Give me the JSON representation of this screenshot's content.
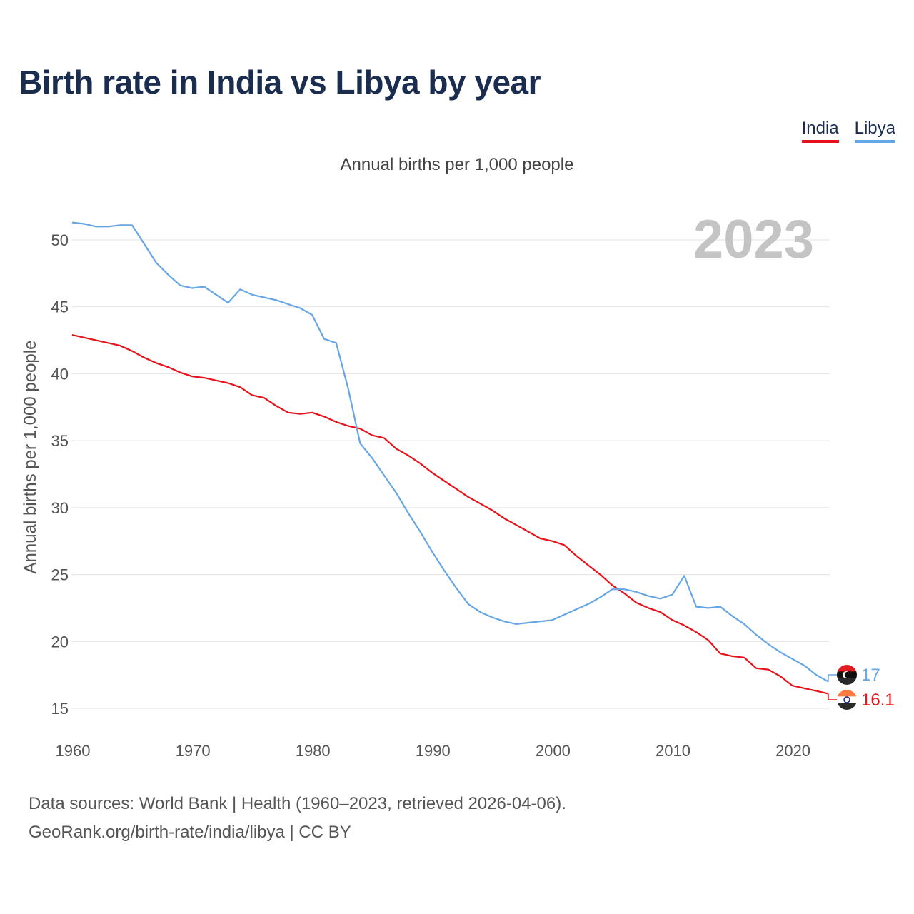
{
  "title": "Birth rate in India vs Libya by year",
  "legend": [
    {
      "name": "India",
      "color": "#e8131a"
    },
    {
      "name": "Libya",
      "color": "#67a6e4"
    }
  ],
  "subtitle": "Annual births per 1,000 people",
  "footer": {
    "line1": "Data sources: World Bank | Health (1960–2023, retrieved 2026-04-06).",
    "line2": "GeoRank.org/birth-rate/india/libya | CC BY"
  },
  "chart_data": {
    "type": "line",
    "title": "Birth rate in India vs Libya by year",
    "subtitle": "Annual births per 1,000 people",
    "xlabel": "",
    "ylabel": "Annual births per 1,000 people",
    "year_label": "2023",
    "xlim": [
      1960,
      2023
    ],
    "ylim": [
      14,
      53
    ],
    "xticks": [
      1960,
      1970,
      1980,
      1990,
      2000,
      2010,
      2020
    ],
    "yticks": [
      15,
      20,
      25,
      30,
      35,
      40,
      45,
      50
    ],
    "grid": true,
    "legend_position": "top-right",
    "x": [
      1960,
      1961,
      1962,
      1963,
      1964,
      1965,
      1966,
      1967,
      1968,
      1969,
      1970,
      1971,
      1972,
      1973,
      1974,
      1975,
      1976,
      1977,
      1978,
      1979,
      1980,
      1981,
      1982,
      1983,
      1984,
      1985,
      1986,
      1987,
      1988,
      1989,
      1990,
      1991,
      1992,
      1993,
      1994,
      1995,
      1996,
      1997,
      1998,
      1999,
      2000,
      2001,
      2002,
      2003,
      2004,
      2005,
      2006,
      2007,
      2008,
      2009,
      2010,
      2011,
      2012,
      2013,
      2014,
      2015,
      2016,
      2017,
      2018,
      2019,
      2020,
      2021,
      2022,
      2023
    ],
    "series": [
      {
        "name": "India",
        "color": "#e8131a",
        "end_label": "16.1",
        "values": [
          42.9,
          42.7,
          42.5,
          42.3,
          42.1,
          41.7,
          41.2,
          40.8,
          40.5,
          40.1,
          39.8,
          39.7,
          39.5,
          39.3,
          39.0,
          38.4,
          38.2,
          37.6,
          37.1,
          37.0,
          37.1,
          36.8,
          36.4,
          36.1,
          35.9,
          35.4,
          35.2,
          34.4,
          33.9,
          33.3,
          32.6,
          32.0,
          31.4,
          30.8,
          30.3,
          29.8,
          29.2,
          28.7,
          28.2,
          27.7,
          27.5,
          27.2,
          26.4,
          25.7,
          25.0,
          24.2,
          23.6,
          22.9,
          22.5,
          22.2,
          21.6,
          21.2,
          20.7,
          20.1,
          19.1,
          18.9,
          18.8,
          18.0,
          17.9,
          17.4,
          16.7,
          16.5,
          16.3,
          16.1
        ]
      },
      {
        "name": "Libya",
        "color": "#67a6e4",
        "end_label": "17",
        "values": [
          51.3,
          51.2,
          51.0,
          51.0,
          51.1,
          51.1,
          49.7,
          48.3,
          47.4,
          46.6,
          46.4,
          46.5,
          45.9,
          45.3,
          46.3,
          45.9,
          45.7,
          45.5,
          45.2,
          44.9,
          44.4,
          42.6,
          42.3,
          38.9,
          34.8,
          33.7,
          32.4,
          31.1,
          29.6,
          28.2,
          26.7,
          25.3,
          24.0,
          22.8,
          22.2,
          21.8,
          21.5,
          21.3,
          21.4,
          21.5,
          21.6,
          22.0,
          22.4,
          22.8,
          23.3,
          23.9,
          23.9,
          23.7,
          23.4,
          23.2,
          23.5,
          24.9,
          22.6,
          22.5,
          22.6,
          21.9,
          21.3,
          20.5,
          19.8,
          19.2,
          18.7,
          18.2,
          17.5,
          17.0
        ]
      }
    ]
  }
}
